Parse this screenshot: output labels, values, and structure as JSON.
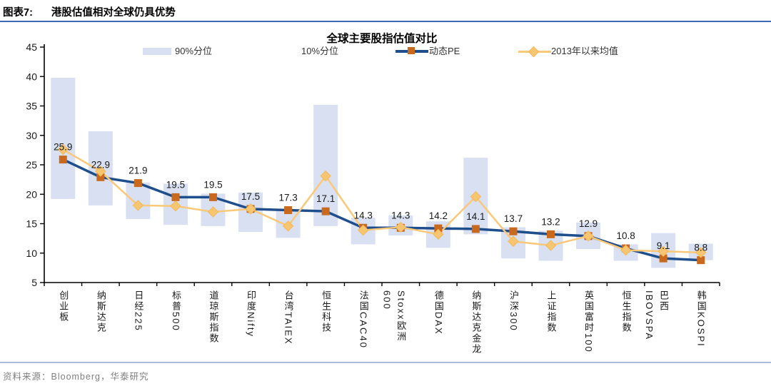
{
  "header": {
    "figure_label": "图表7:",
    "figure_title": "港股估值相对全球仍具优势"
  },
  "chart_data": {
    "type": "combo",
    "title": "全球主要股指估值对比",
    "legend_position": "top",
    "grid": false,
    "ylim": [
      5,
      45
    ],
    "yticks": [
      45,
      40,
      35,
      30,
      25,
      20,
      15,
      10,
      5
    ],
    "categories": [
      "创业板",
      "纳斯达克",
      "日经225",
      "标普500",
      "道琼斯指数",
      "印度Nifty",
      "台湾TAIEX",
      "恒生科技",
      "法国CAC40",
      "Stoxx欧洲600",
      "德国DAX",
      "纳斯达克金龙",
      "沪深300",
      "上证指数",
      "英国富时100",
      "恒生指数",
      "巴西IBOVSPA",
      "韩国KOSPI"
    ],
    "series": [
      {
        "name": "90%分位",
        "type": "range_band_top",
        "values": [
          39.8,
          30.7,
          22.0,
          21.8,
          20.1,
          20.3,
          17.4,
          35.2,
          16.0,
          16.4,
          15.4,
          26.2,
          14.4,
          13.8,
          15.2,
          11.5,
          13.4,
          11.6
        ]
      },
      {
        "name": "10%分位",
        "type": "range_band_bottom",
        "values": [
          19.2,
          18.1,
          15.8,
          14.8,
          14.6,
          13.6,
          12.6,
          14.6,
          11.5,
          13.0,
          10.9,
          13.2,
          9.1,
          8.7,
          10.7,
          8.7,
          7.5,
          8.8
        ]
      },
      {
        "name": "动态PE",
        "type": "line",
        "marker": "square",
        "data_labels": true,
        "values": [
          25.9,
          22.9,
          21.9,
          19.5,
          19.5,
          17.5,
          17.3,
          17.1,
          14.3,
          14.3,
          14.2,
          14.1,
          13.7,
          13.2,
          12.9,
          10.8,
          9.1,
          8.8
        ]
      },
      {
        "name": "2013年以来均值",
        "type": "line",
        "marker": "diamond",
        "data_labels": false,
        "values": [
          27.6,
          23.9,
          18.1,
          18.0,
          17.0,
          17.5,
          14.6,
          23.1,
          13.9,
          14.4,
          13.2,
          19.6,
          12.0,
          11.3,
          12.9,
          10.5,
          10.3,
          10.1
        ]
      }
    ],
    "colors": {
      "band": "#D8E0F2",
      "pe_line": "#1F4E8C",
      "pe_marker": "#C8691E",
      "avg_line": "#F9C878",
      "avg_marker_fill": "#F8C671",
      "avg_marker_stroke": "#F2B858",
      "axis": "#000000",
      "label_text": "#1a1a1a"
    }
  },
  "footer": {
    "source": "资料来源：Bloomberg，华泰研究"
  }
}
